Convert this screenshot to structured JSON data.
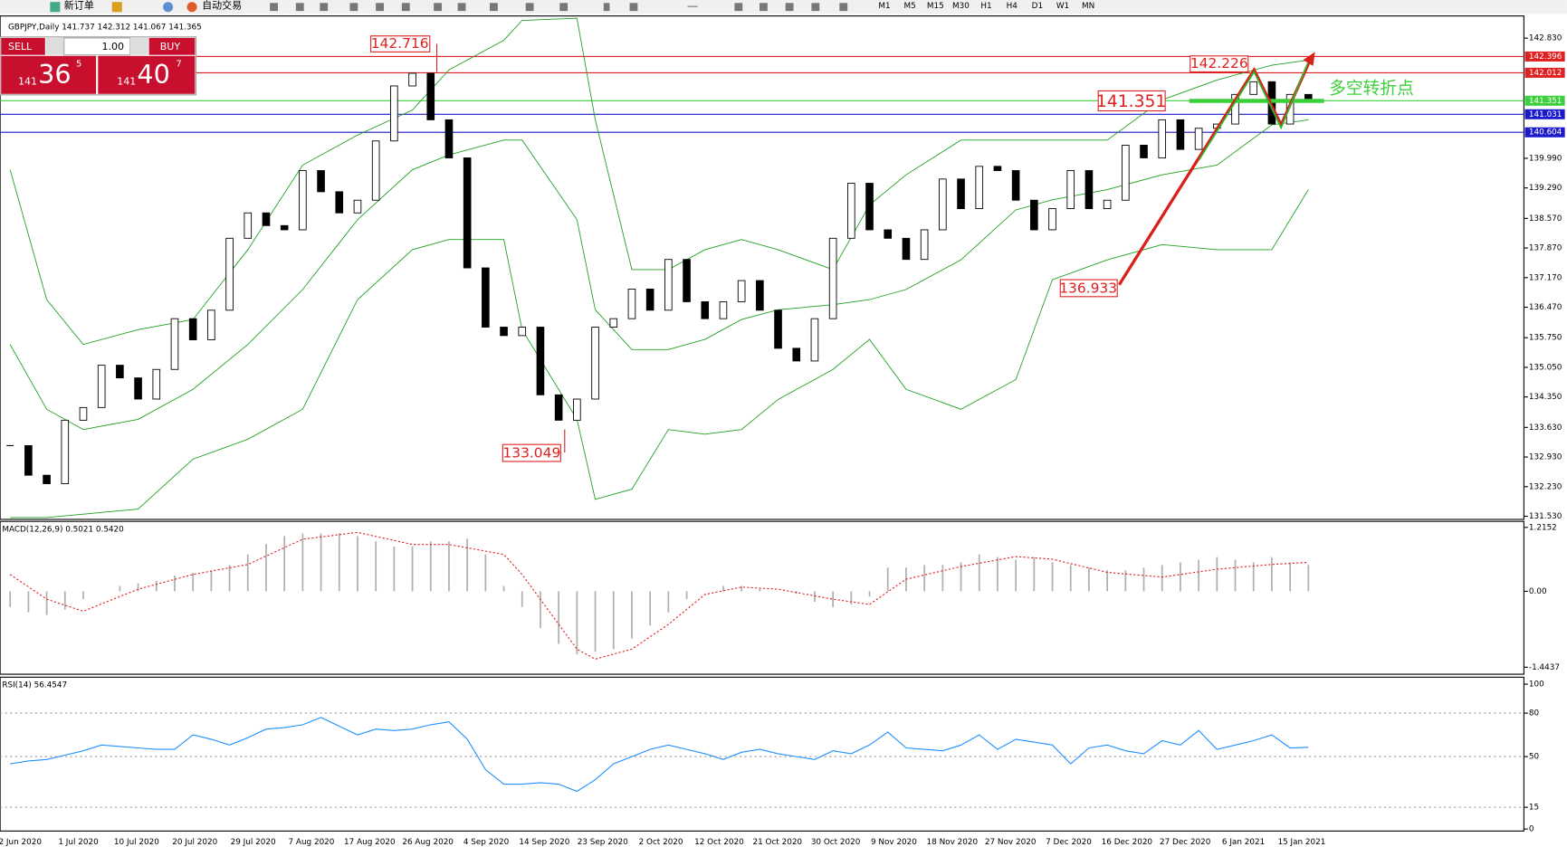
{
  "toolbar": {
    "buttons": [
      "新订单",
      "自动交易"
    ],
    "timeframes": [
      "M1",
      "M5",
      "M15",
      "M30",
      "H1",
      "H4",
      "D1",
      "W1",
      "MN"
    ]
  },
  "trade_panel": {
    "sell": "SELL",
    "buy": "BUY",
    "volume": "1.00",
    "bid": [
      "141",
      "36",
      "5"
    ],
    "ask": [
      "141",
      "40",
      "7"
    ]
  },
  "chart_data": [
    {
      "type": "candlestick",
      "title": "GBPJPY,Daily  141.737 142.312 141.067 141.365",
      "closes": [
        133.2,
        132.5,
        132.3,
        133.8,
        134.1,
        135.1,
        134.8,
        134.3,
        135.0,
        136.2,
        135.7,
        136.4,
        138.1,
        138.7,
        138.4,
        138.3,
        139.7,
        139.2,
        138.7,
        139.0,
        140.4,
        141.7,
        142.0,
        140.9,
        140.0,
        137.4,
        136.0,
        135.8,
        136.0,
        134.4,
        133.8,
        134.3,
        136.0,
        136.2,
        136.9,
        136.4,
        137.6,
        136.6,
        136.2,
        136.6,
        137.1,
        136.4,
        135.5,
        135.2,
        136.2,
        138.1,
        139.4,
        138.3,
        138.1,
        137.6,
        138.3,
        139.5,
        138.8,
        139.8,
        139.7,
        139.0,
        138.3,
        138.8,
        139.7,
        138.8,
        139.0,
        140.3,
        140.0,
        140.9,
        140.2,
        140.7,
        140.8,
        141.5,
        141.8,
        140.8,
        141.5,
        141.365
      ],
      "bands": {
        "x": [
          0,
          2,
          4,
          7,
          10,
          13,
          16,
          19,
          22,
          24,
          27,
          28,
          31,
          32,
          34,
          36,
          38,
          40,
          42,
          45,
          47,
          49,
          52,
          55,
          57,
          60,
          63,
          66,
          69,
          71
        ],
        "upper": [
          139.72,
          136.65,
          135.59,
          135.94,
          136.18,
          137.83,
          139.83,
          140.54,
          141.13,
          142.08,
          142.78,
          143.25,
          143.3,
          140.9,
          137.36,
          137.36,
          137.83,
          138.07,
          137.83,
          137.36,
          138.89,
          139.6,
          140.42,
          140.42,
          140.42,
          140.42,
          141.37,
          141.84,
          142.19,
          142.31
        ],
        "middle": [
          135.59,
          134.06,
          133.58,
          133.82,
          134.53,
          135.59,
          136.89,
          138.54,
          139.72,
          140.07,
          140.42,
          140.42,
          138.54,
          136.41,
          135.47,
          135.47,
          135.71,
          136.18,
          136.41,
          136.53,
          136.65,
          136.89,
          137.59,
          138.77,
          139.01,
          139.25,
          139.6,
          139.83,
          140.78,
          140.9
        ],
        "lower": [
          131.5,
          131.5,
          131.58,
          131.7,
          132.88,
          133.35,
          134.06,
          136.65,
          137.83,
          138.07,
          138.07,
          135.94,
          133.82,
          131.93,
          132.17,
          133.58,
          133.47,
          133.58,
          134.29,
          135.0,
          135.71,
          134.53,
          134.06,
          134.76,
          137.12,
          137.59,
          137.95,
          137.83,
          137.83,
          139.25
        ]
      },
      "ylim": [
        131.48,
        143.33
      ],
      "yticks": [
        {
          "value": 142.83,
          "label": "142.830"
        },
        {
          "value": 139.99,
          "label": "139.990"
        },
        {
          "value": 139.29,
          "label": "139.290"
        },
        {
          "value": 138.57,
          "label": "138.570"
        },
        {
          "value": 137.87,
          "label": "137.870"
        },
        {
          "value": 137.17,
          "label": "137.170"
        },
        {
          "value": 136.47,
          "label": "136.470"
        },
        {
          "value": 135.75,
          "label": "135.750"
        },
        {
          "value": 135.05,
          "label": "135.050"
        },
        {
          "value": 134.35,
          "label": "134.350"
        },
        {
          "value": 133.63,
          "label": "133.630"
        },
        {
          "value": 132.93,
          "label": "132.930"
        },
        {
          "value": 132.23,
          "label": "132.230"
        },
        {
          "value": 131.53,
          "label": "131.530"
        }
      ],
      "price_lines": [
        {
          "value": 142.396,
          "color": "#e02020"
        },
        {
          "value": 142.012,
          "color": "#e02020"
        },
        {
          "value": 141.351,
          "color": "#3ccf3c"
        },
        {
          "value": 141.031,
          "color": "#1a1acc"
        },
        {
          "value": 140.604,
          "color": "#1a1acc"
        }
      ],
      "annotations": [
        "142.716",
        "133.049",
        "136.933",
        "142.226",
        "141.351",
        "多空转折点"
      ],
      "x_labels": [
        "2 Jun 2020",
        "1 Jul 2020",
        "10 Jul 2020",
        "20 Jul 2020",
        "29 Jul 2020",
        "7 Aug 2020",
        "17 Aug 2020",
        "26 Aug 2020",
        "4 Sep 2020",
        "14 Sep 2020",
        "23 Sep 2020",
        "2 Oct 2020",
        "12 Oct 2020",
        "21 Oct 2020",
        "30 Oct 2020",
        "9 Nov 2020",
        "18 Nov 2020",
        "27 Nov 2020",
        "7 Dec 2020",
        "16 Dec 2020",
        "27 Dec 2020",
        "6 Jan 2021",
        "15 Jan 2021"
      ]
    },
    {
      "type": "macd",
      "title": "MACD(12,26,9) 0.5021 0.5420",
      "histogram": [
        -0.3,
        -0.4,
        -0.45,
        -0.35,
        -0.15,
        0.0,
        0.1,
        0.15,
        0.2,
        0.3,
        0.35,
        0.4,
        0.5,
        0.7,
        0.9,
        1.05,
        1.1,
        1.1,
        1.1,
        1.05,
        0.95,
        0.85,
        0.85,
        0.95,
        0.95,
        1.0,
        0.7,
        0.1,
        -0.3,
        -0.7,
        -1.0,
        -1.2,
        -1.15,
        -1.1,
        -0.9,
        -0.65,
        -0.4,
        -0.15,
        0.0,
        0.1,
        0.1,
        0.05,
        0.0,
        -0.05,
        -0.2,
        -0.3,
        -0.25,
        -0.1,
        0.45,
        0.45,
        0.5,
        0.5,
        0.55,
        0.7,
        0.65,
        0.6,
        0.65,
        0.55,
        0.5,
        0.45,
        0.4,
        0.4,
        0.45,
        0.5,
        0.55,
        0.6,
        0.65,
        0.6,
        0.55,
        0.65,
        0.55,
        0.5
      ],
      "signal_x": [
        0,
        2,
        4,
        7,
        10,
        13,
        16,
        19,
        22,
        24,
        27,
        28,
        31,
        32,
        34,
        36,
        38,
        40,
        42,
        45,
        47,
        49,
        52,
        55,
        57,
        60,
        63,
        66,
        69,
        71
      ],
      "signal": [
        0.32,
        -0.15,
        -0.38,
        0.04,
        0.32,
        0.51,
        0.99,
        1.12,
        0.89,
        0.89,
        0.7,
        0.32,
        -1.1,
        -1.29,
        -1.1,
        -0.63,
        -0.06,
        0.08,
        0.04,
        -0.15,
        -0.25,
        0.23,
        0.47,
        0.66,
        0.61,
        0.36,
        0.27,
        0.42,
        0.51,
        0.55
      ],
      "ylim": [
        -1.4437,
        1.2152
      ],
      "yticks": [
        1.2152,
        {
          "value": 0,
          "label": "0.00"
        },
        -1.4437
      ]
    },
    {
      "type": "line",
      "title": "RSI(14) 56.4547",
      "values": [
        45,
        47,
        48,
        51,
        54,
        58,
        57,
        56,
        55,
        55,
        65,
        62,
        58,
        63,
        69,
        70,
        72,
        77,
        71,
        65,
        69,
        68,
        69,
        72,
        74,
        62,
        41,
        31,
        31,
        32,
        31,
        26,
        34,
        45,
        50,
        55,
        58,
        55,
        52,
        48,
        53,
        55,
        52,
        50,
        48,
        54,
        52,
        58,
        67,
        56,
        55,
        54,
        58,
        65,
        55,
        62,
        60,
        58,
        45,
        56,
        58,
        54,
        52,
        61,
        58,
        68,
        55,
        58,
        61,
        65,
        56,
        56.4547
      ],
      "ylim": [
        0,
        100
      ],
      "yticks": [
        100,
        80,
        50,
        15,
        0
      ]
    }
  ]
}
